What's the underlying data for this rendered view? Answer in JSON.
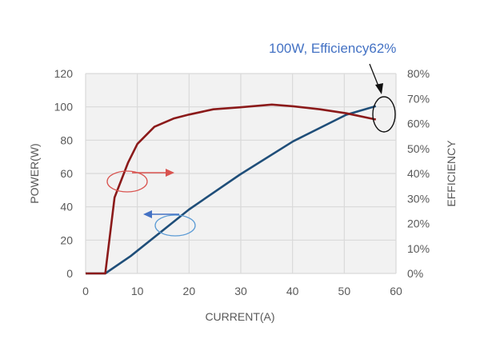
{
  "chart_data": {
    "type": "line",
    "annotation": "100W, Efficiency62%",
    "xlabel": "CURRENT(A)",
    "ylabel": "POWER(W)",
    "y2label": "EFFICIENCY",
    "xlim": [
      0,
      60
    ],
    "ylim": [
      0,
      120
    ],
    "y2lim": [
      0,
      80
    ],
    "xticks": [
      "0",
      "10",
      "20",
      "30",
      "40",
      "50",
      "60"
    ],
    "yticks": [
      "0",
      "20",
      "40",
      "60",
      "80",
      "100",
      "120"
    ],
    "y2ticks": [
      "0%",
      "10%",
      "20%",
      "30%",
      "40%",
      "50%",
      "60%",
      "70%",
      "80%"
    ],
    "grid": true,
    "series": [
      {
        "name": "Power",
        "axis": "left",
        "color": "#1f4e79",
        "x": [
          0,
          3.8,
          8.7,
          20,
          29.8,
          40.1,
          50.4,
          56.1
        ],
        "y": [
          0,
          0,
          10.4,
          38.4,
          59.3,
          79.3,
          95.3,
          100.4
        ]
      },
      {
        "name": "Efficiency",
        "axis": "right",
        "color": "#8b1a1a",
        "x": [
          0,
          3.8,
          5.6,
          8.2,
          10,
          13.3,
          17,
          20,
          24.7,
          29.9,
          36,
          40.1,
          45.3,
          50.4,
          56.1
        ],
        "y": [
          0,
          0,
          30.4,
          44.3,
          51.8,
          58.7,
          62,
          63.6,
          65.7,
          66.5,
          67.6,
          66.9,
          65.7,
          64.1,
          61.6
        ]
      }
    ]
  }
}
